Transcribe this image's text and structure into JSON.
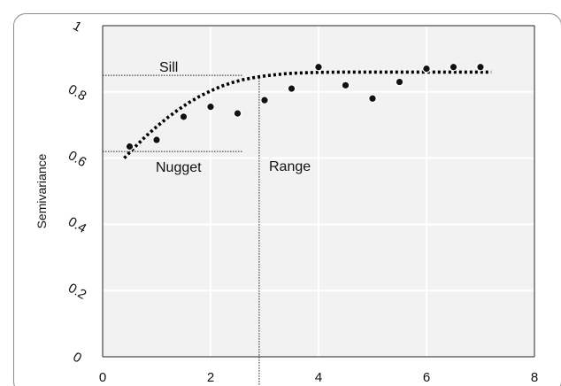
{
  "chart_data": {
    "type": "scatter",
    "title": "",
    "xlabel": "",
    "ylabel": "Semivariance",
    "xlim": [
      0,
      8
    ],
    "ylim": [
      0,
      1
    ],
    "x_ticks": [
      0,
      2,
      4,
      6,
      8
    ],
    "x_tick_labels": [
      "0",
      "2",
      "4",
      "6",
      "8"
    ],
    "y_ticks": [
      0,
      0.2,
      0.4,
      0.6,
      0.8,
      1
    ],
    "y_tick_labels": [
      "0",
      "0.2",
      "0.4",
      "0.6",
      "0.8",
      "1"
    ],
    "grid": true,
    "legend": "none",
    "series": [
      {
        "type": "scatter",
        "x": [
          0.5,
          1.0,
          1.5,
          2.0,
          2.5,
          3.0,
          3.5,
          4.0,
          4.5,
          5.0,
          5.5,
          6.0,
          6.5,
          7.0
        ],
        "y": [
          0.635,
          0.655,
          0.725,
          0.755,
          0.735,
          0.775,
          0.81,
          0.875,
          0.82,
          0.78,
          0.83,
          0.87,
          0.875,
          0.875
        ]
      },
      {
        "type": "fitted-curve",
        "style": "dotted",
        "x": [
          0.4,
          0.6,
          0.8,
          1.0,
          1.2,
          1.4,
          1.6,
          1.8,
          2.0,
          2.2,
          2.4,
          2.6,
          2.8,
          3.0,
          3.2,
          3.4,
          3.6,
          3.8,
          4.0,
          4.5,
          5.0,
          5.5,
          6.0,
          6.5,
          7.0,
          7.2
        ],
        "y": [
          0.6,
          0.634,
          0.666,
          0.695,
          0.722,
          0.746,
          0.768,
          0.787,
          0.803,
          0.817,
          0.828,
          0.837,
          0.843,
          0.848,
          0.852,
          0.855,
          0.857,
          0.858,
          0.859,
          0.86,
          0.86,
          0.86,
          0.86,
          0.86,
          0.86,
          0.86
        ]
      }
    ],
    "annotations": {
      "sill": {
        "label": "Sill",
        "y": 0.85,
        "x_end": 2.6
      },
      "nugget": {
        "label": "Nugget",
        "y": 0.62,
        "x_end": 2.6
      },
      "range": {
        "label": "Range",
        "x": 2.9,
        "y_top": 0.85
      }
    }
  },
  "colors": {
    "plot_background": "#f2f2f2",
    "gridline": "#ffffff",
    "marker": "#111111",
    "curve": "#000000",
    "reference_line": "#222222"
  }
}
